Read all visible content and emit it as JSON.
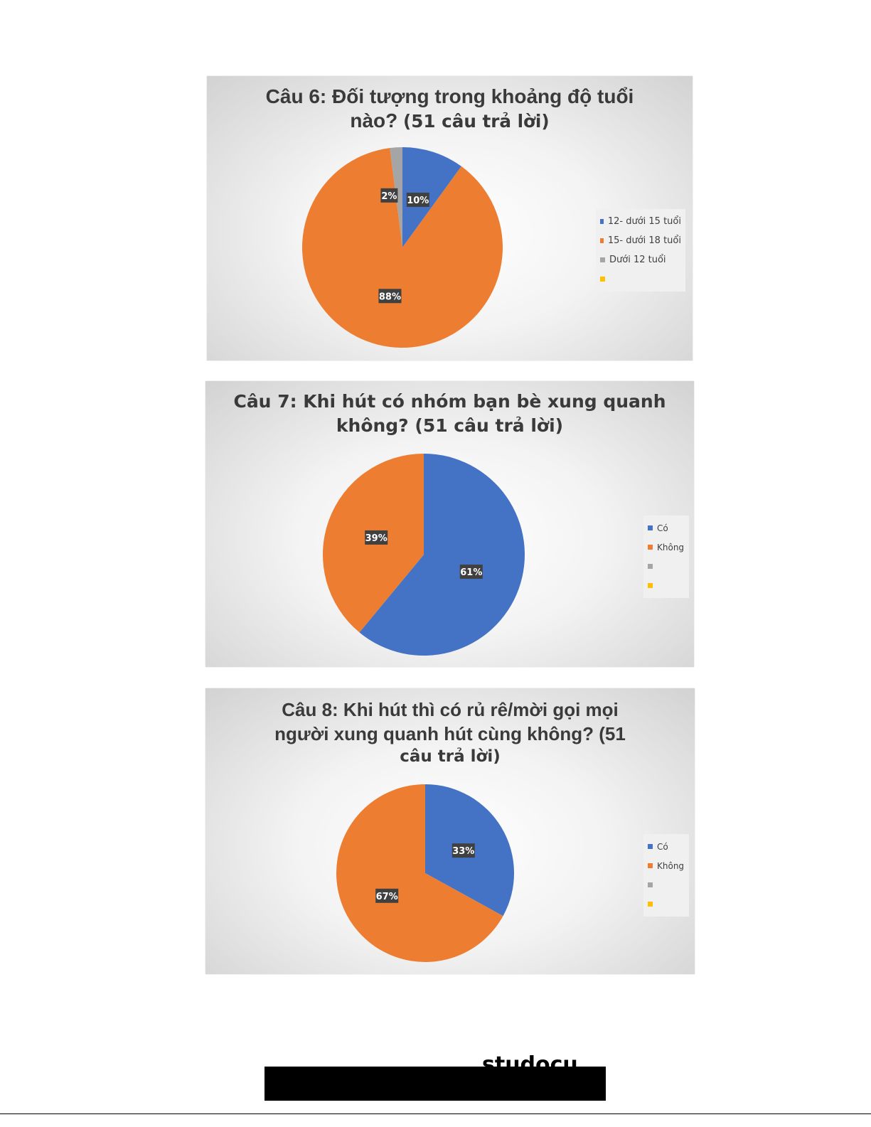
{
  "colors": {
    "blue": "#4472c4",
    "orange": "#ed7d31",
    "gray": "#a5a5a5",
    "yellow": "#ffc000"
  },
  "chart_data": [
    {
      "type": "pie",
      "title": "Câu 6: Đối tượng trong khoảng độ tuổi",
      "title_line2": "nào?",
      "title_suffix": "(51 câu trả lời)",
      "categories": [
        "12- dưới 15 tuổi",
        "15- dưới 18 tuổi",
        "Dưới 12 tuổi",
        ""
      ],
      "values": [
        10,
        88,
        2,
        0
      ],
      "data_labels": [
        "10%",
        "88%",
        "2%",
        ""
      ],
      "legend": "right"
    },
    {
      "type": "pie",
      "title": "Câu 7: Khi hút có nhóm bạn bè xung quanh",
      "title_line2": "không? (51 câu trả lời)",
      "title_suffix": "",
      "categories": [
        "Có",
        "Không",
        "",
        ""
      ],
      "values": [
        61,
        39,
        0,
        0
      ],
      "data_labels": [
        "61%",
        "39%",
        "",
        ""
      ],
      "legend": "right"
    },
    {
      "type": "pie",
      "title": "Câu 8: Khi hút thì có rủ rê/mời gọi mọi",
      "title_line2": "người xung quanh hút cùng không? (51",
      "title_line3": "câu trả lời)",
      "title_suffix": "",
      "categories": [
        "Có",
        "Không",
        "",
        ""
      ],
      "values": [
        33,
        67,
        0,
        0
      ],
      "data_labels": [
        "33%",
        "67%",
        "",
        ""
      ],
      "legend": "right"
    }
  ],
  "footer": {
    "logo_text": "studocu"
  }
}
